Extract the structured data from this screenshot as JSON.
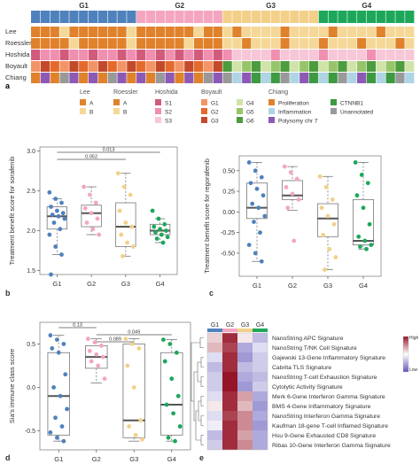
{
  "colors": {
    "groups": {
      "G1": "#4f81bd",
      "G2": "#f4a6c0",
      "G3": "#f3d089",
      "G4": "#1ea75b"
    },
    "lee": {
      "A": "#e0822c",
      "B": "#f5d898"
    },
    "hoshida": {
      "S1": "#d25b7c",
      "S2": "#f08fb0",
      "S3": "#f7c6d7"
    },
    "boyault": {
      "G1": "#f29466",
      "G2": "#e46a2c",
      "G3": "#c24a2b",
      "G4": "#d0e3a9",
      "G5": "#97c46a",
      "G6": "#4d9c3e"
    },
    "chiang": {
      "Proliferation": "#e0822c",
      "Inflammation": "#aed4e6",
      "Polysomy chr 7": "#8e59b5",
      "CTNNB1": "#3d9a41",
      "Unannotated": "#999999"
    }
  },
  "panel_a": {
    "groups": [
      "G1",
      "G2",
      "G3",
      "G4"
    ],
    "rows": [
      "Lee",
      "Roessler",
      "Hoshida",
      "Boyault",
      "Chiang"
    ],
    "label": "a",
    "legend": {
      "lee_title": "Lee",
      "lee_items": [
        "A",
        "B"
      ],
      "roessler_title": "Roessler",
      "roessler_items": [
        "A",
        "B"
      ],
      "hoshida_title": "Hoshida",
      "hoshida_items": [
        "S1",
        "S2",
        "S3"
      ],
      "boyault_title": "Boyault",
      "boyault_items": [
        "G1",
        "G2",
        "G3",
        "G4",
        "G5",
        "G6"
      ],
      "chiang_title": "Chiang",
      "chiang_items": [
        "Proliferation",
        "Inflammation",
        "Polysomy chr 7",
        "CTNNB1",
        "Unannotated"
      ]
    }
  },
  "chart_data": [
    {
      "type": "box",
      "id": "b",
      "ylabel": "Treatment benefit score for sorafenib",
      "categories": [
        "G1",
        "G2",
        "G3",
        "G4"
      ],
      "ylim": [
        1.45,
        3.05
      ],
      "yticks": [
        "1.5",
        "2.0",
        "2.5",
        "3.0"
      ],
      "box": [
        [
          2.02,
          2.18,
          2.3
        ],
        [
          2.05,
          2.22,
          2.32
        ],
        [
          1.8,
          2.05,
          2.35
        ],
        [
          1.95,
          2.0,
          2.08
        ]
      ],
      "whiskers": [
        [
          1.7,
          2.4
        ],
        [
          1.95,
          2.55
        ],
        [
          1.68,
          2.72
        ],
        [
          1.85,
          2.15
        ]
      ],
      "points": [
        [
          2.48,
          2.4,
          2.35,
          2.3,
          2.25,
          2.22,
          2.2,
          2.18,
          2.15,
          2.1,
          2.02,
          1.95,
          1.8,
          1.7,
          1.45
        ],
        [
          2.55,
          2.45,
          2.35,
          2.28,
          2.22,
          2.15,
          2.1,
          2.02,
          1.95
        ],
        [
          2.72,
          2.55,
          2.45,
          2.25,
          2.1,
          2.05,
          1.95,
          1.85,
          1.8,
          1.68
        ],
        [
          2.25,
          2.15,
          2.08,
          2.05,
          2.02,
          2.0,
          1.98,
          1.95,
          1.92,
          1.9,
          1.85
        ]
      ],
      "comparisons": [
        {
          "from": "G1",
          "to": "G4",
          "p": "0.013"
        },
        {
          "from": "G1",
          "to": "G3",
          "p": "0.052"
        }
      ]
    },
    {
      "type": "box",
      "id": "c",
      "ylabel": "Treatment benefit score for regorafenib",
      "categories": [
        "G1",
        "G2",
        "G3",
        "G4"
      ],
      "ylim": [
        -0.78,
        0.68
      ],
      "yticks": [
        "-0.50",
        "-0.25",
        "0.00",
        "0.25",
        "0.50"
      ],
      "box": [
        [
          -0.08,
          0.05,
          0.35
        ],
        [
          0.15,
          0.2,
          0.38
        ],
        [
          -0.3,
          -0.08,
          0.1
        ],
        [
          -0.4,
          -0.35,
          0.15
        ]
      ],
      "whiskers": [
        [
          -0.6,
          0.6
        ],
        [
          0.02,
          0.55
        ],
        [
          -0.7,
          0.43
        ],
        [
          -0.45,
          0.6
        ]
      ],
      "points": [
        [
          0.6,
          0.5,
          0.42,
          0.35,
          0.28,
          0.2,
          0.1,
          0.05,
          -0.05,
          -0.12,
          -0.25,
          -0.4,
          -0.5,
          -0.6
        ],
        [
          0.55,
          0.48,
          0.4,
          0.3,
          0.22,
          0.15,
          0.05,
          -0.35
        ],
        [
          0.43,
          0.3,
          0.15,
          0.05,
          -0.05,
          -0.15,
          -0.28,
          -0.45,
          -0.55,
          -0.7
        ],
        [
          0.6,
          0.45,
          0.35,
          0.2,
          0.05,
          -0.15,
          -0.3,
          -0.35,
          -0.4,
          -0.42,
          -0.45
        ]
      ],
      "comparisons": []
    },
    {
      "type": "box",
      "id": "d",
      "ylabel": "Sia's immune class score",
      "categories": [
        "G1",
        "G2",
        "G3",
        "G4"
      ],
      "ylim": [
        -0.72,
        0.75
      ],
      "yticks": [
        "-0.5",
        "0.0",
        "0.5"
      ],
      "box": [
        [
          -0.55,
          -0.1,
          0.4
        ],
        [
          0.22,
          0.35,
          0.48
        ],
        [
          -0.58,
          -0.38,
          0.5
        ],
        [
          -0.55,
          -0.2,
          0.4
        ]
      ],
      "whiskers": [
        [
          -0.62,
          0.6
        ],
        [
          0.05,
          0.56
        ],
        [
          -0.62,
          0.56
        ],
        [
          -0.62,
          0.55
        ]
      ],
      "points": [
        [
          0.6,
          0.55,
          0.5,
          0.45,
          0.4,
          0.15,
          0.0,
          -0.1,
          -0.25,
          -0.35,
          -0.45,
          -0.52,
          -0.58,
          -0.62
        ],
        [
          0.56,
          0.52,
          0.48,
          0.42,
          0.38,
          0.35,
          0.3,
          0.25,
          0.1
        ],
        [
          0.56,
          0.5,
          0.45,
          0.25,
          0.0,
          -0.38,
          -0.45,
          -0.55,
          -0.6
        ],
        [
          0.55,
          0.5,
          0.4,
          0.3,
          0.1,
          -0.1,
          -0.2,
          -0.3,
          -0.45,
          -0.58,
          -0.62
        ]
      ],
      "comparisons": [
        {
          "from": "G1",
          "to": "G2",
          "p": "0.13"
        },
        {
          "from": "G2",
          "to": "G4",
          "p": "0.049"
        },
        {
          "from": "G2",
          "to": "G3",
          "p": "0.089"
        }
      ]
    },
    {
      "type": "heatmap",
      "id": "e",
      "columns": [
        "G1",
        "G2",
        "G3",
        "G4"
      ],
      "rows": [
        "NanoString APC Signature",
        "NanoString T/NK Cell Signature",
        "Gajewski 13-Gene Inflammatory Signature",
        "Cabrita TLS Signature",
        "NanoString T-cell Exhaustion Signature",
        "Cytolytic Activity Signature",
        "Merk 6-Gene Interferon Gamma Signature",
        "BMS 4-Gene Inflammatory Signature",
        "NanoString Interferon Gamma Signature",
        "Kaufman 18-gene T-cell Inflamed Signature",
        "Hsu 9-Gene Exhausted CD8 Signature",
        "Ribas 10-Gene Interferon Gamma Signature"
      ],
      "values": [
        [
          0.2,
          0.9,
          0.1,
          -0.4
        ],
        [
          0.3,
          0.8,
          -0.5,
          -0.2
        ],
        [
          -0.2,
          0.9,
          -0.6,
          -0.3
        ],
        [
          -0.4,
          0.9,
          -0.4,
          -0.3
        ],
        [
          -0.3,
          1.0,
          -0.5,
          -0.4
        ],
        [
          -0.3,
          1.0,
          -0.6,
          -0.3
        ],
        [
          -0.2,
          0.9,
          0.4,
          -0.5
        ],
        [
          0.1,
          0.9,
          0.3,
          -0.6
        ],
        [
          -0.2,
          0.8,
          0.5,
          -0.5
        ],
        [
          -0.1,
          0.9,
          0.5,
          -0.6
        ],
        [
          -0.4,
          0.9,
          0.4,
          -0.5
        ],
        [
          -0.3,
          0.9,
          0.5,
          -0.5
        ]
      ],
      "scale_high": "High",
      "scale_low": "Low"
    }
  ]
}
